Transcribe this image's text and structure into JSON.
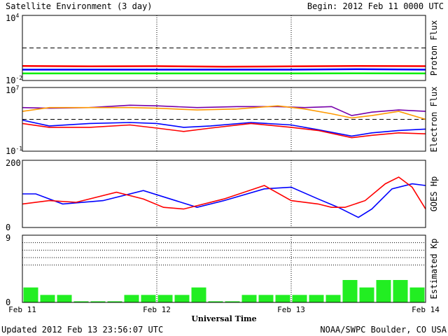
{
  "header": {
    "title": "Satellite Environment (3 day)",
    "begin": "Begin:  2012 Feb 11 0000 UTC"
  },
  "footer": {
    "updated": "Updated 2012 Feb 13 23:56:07 UTC",
    "credit": "NOAA/SWPC Boulder, CO USA"
  },
  "x_axis": {
    "label": "Universal Time",
    "ticks": [
      "Feb 11",
      "Feb 12",
      "Feb 13",
      "Feb 14"
    ]
  },
  "colors": {
    "red": "#ff0000",
    "blue": "#0000ff",
    "green": "#00ee00",
    "orange": "#ff9900",
    "purple": "#7700aa",
    "bar": "#22ee22"
  },
  "chart_data": [
    {
      "type": "line",
      "panel": "proton",
      "ylabel": "Proton Flux",
      "scale": "log",
      "ylim": [
        0.01,
        10000
      ],
      "y_ticks": [
        {
          "label": "10",
          "exp": "4"
        },
        {
          "label": "10",
          "exp": "-2"
        }
      ],
      "threshold": 10,
      "x_range_days": [
        0,
        3
      ],
      "series": [
        {
          "color": "red",
          "x": [
            0,
            0.5,
            1,
            1.5,
            2,
            2.5,
            3
          ],
          "y": [
            0.22,
            0.2,
            0.21,
            0.19,
            0.2,
            0.22,
            0.21
          ]
        },
        {
          "color": "blue",
          "x": [
            0,
            0.5,
            1,
            1.5,
            2,
            2.5,
            3
          ],
          "y": [
            0.1,
            0.1,
            0.1,
            0.1,
            0.1,
            0.11,
            0.1
          ]
        },
        {
          "color": "green",
          "x": [
            0,
            0.5,
            1,
            1.5,
            2,
            2.5,
            3
          ],
          "y": [
            0.045,
            0.045,
            0.045,
            0.045,
            0.045,
            0.046,
            0.045
          ]
        }
      ]
    },
    {
      "type": "line",
      "panel": "electron",
      "ylabel": "Electron Flux",
      "scale": "log",
      "ylim": [
        0.1,
        10000000
      ],
      "y_ticks": [
        {
          "label": "10",
          "exp": "7"
        },
        {
          "label": "10",
          "exp": "-1"
        }
      ],
      "threshold": 1000,
      "x_range_days": [
        0,
        3
      ],
      "series": [
        {
          "color": "purple",
          "x": [
            0,
            0.2,
            0.5,
            0.8,
            1.0,
            1.3,
            1.6,
            1.9,
            2.1,
            2.3,
            2.45,
            2.6,
            2.8,
            3.0
          ],
          "y": [
            30000,
            25000,
            30000,
            60000,
            50000,
            30000,
            40000,
            40000,
            30000,
            40000,
            3000,
            8000,
            15000,
            10000
          ]
        },
        {
          "color": "orange",
          "x": [
            0,
            0.2,
            0.5,
            0.8,
            1.0,
            1.3,
            1.6,
            1.9,
            2.1,
            2.3,
            2.45,
            2.6,
            2.8,
            3.0
          ],
          "y": [
            10000,
            30000,
            30000,
            30000,
            25000,
            15000,
            20000,
            50000,
            20000,
            5000,
            1500,
            3000,
            10000,
            1000
          ]
        },
        {
          "color": "blue",
          "x": [
            0,
            0.2,
            0.5,
            0.8,
            1.0,
            1.2,
            1.4,
            1.7,
            2.0,
            2.2,
            2.45,
            2.6,
            2.8,
            3.0
          ],
          "y": [
            800,
            150,
            300,
            400,
            300,
            100,
            150,
            400,
            200,
            50,
            8,
            20,
            40,
            60
          ]
        },
        {
          "color": "red",
          "x": [
            0,
            0.2,
            0.5,
            0.8,
            1.0,
            1.2,
            1.4,
            1.7,
            2.0,
            2.2,
            2.45,
            2.6,
            2.8,
            3.0
          ],
          "y": [
            300,
            100,
            100,
            200,
            80,
            30,
            80,
            300,
            100,
            40,
            5,
            10,
            20,
            15
          ]
        }
      ]
    },
    {
      "type": "line",
      "panel": "hp",
      "ylabel": "GOES Hp",
      "scale": "linear",
      "ylim": [
        0,
        200
      ],
      "y_ticks": [
        {
          "label": "200"
        },
        {
          "label": "0"
        }
      ],
      "x_range_days": [
        0,
        3
      ],
      "series": [
        {
          "color": "blue",
          "x": [
            0,
            0.1,
            0.3,
            0.6,
            0.9,
            1.1,
            1.3,
            1.5,
            1.8,
            2.0,
            2.2,
            2.35,
            2.5,
            2.6,
            2.75,
            2.9,
            3.0
          ],
          "y": [
            100,
            100,
            70,
            80,
            110,
            85,
            60,
            80,
            115,
            120,
            85,
            60,
            30,
            55,
            115,
            130,
            125
          ]
        },
        {
          "color": "red",
          "x": [
            0,
            0.2,
            0.4,
            0.7,
            0.9,
            1.05,
            1.2,
            1.5,
            1.8,
            2.0,
            2.2,
            2.3,
            2.4,
            2.55,
            2.7,
            2.8,
            2.9,
            3.0
          ],
          "y": [
            70,
            80,
            75,
            105,
            85,
            60,
            55,
            85,
            125,
            80,
            70,
            60,
            60,
            80,
            130,
            150,
            120,
            55
          ]
        }
      ]
    },
    {
      "type": "bar",
      "panel": "kp",
      "ylabel": "Estimated Kp",
      "ylim": [
        0,
        9
      ],
      "y_ticks": [
        {
          "label": "9"
        },
        {
          "label": "0"
        }
      ],
      "grid_levels": [
        5,
        6,
        7,
        8
      ],
      "bin_hours": 3,
      "values": [
        2,
        1,
        1,
        0,
        0,
        0,
        1,
        1,
        1,
        1,
        2,
        0,
        0,
        1,
        1,
        1,
        1,
        1,
        1,
        3,
        2,
        3,
        3,
        2
      ]
    }
  ]
}
